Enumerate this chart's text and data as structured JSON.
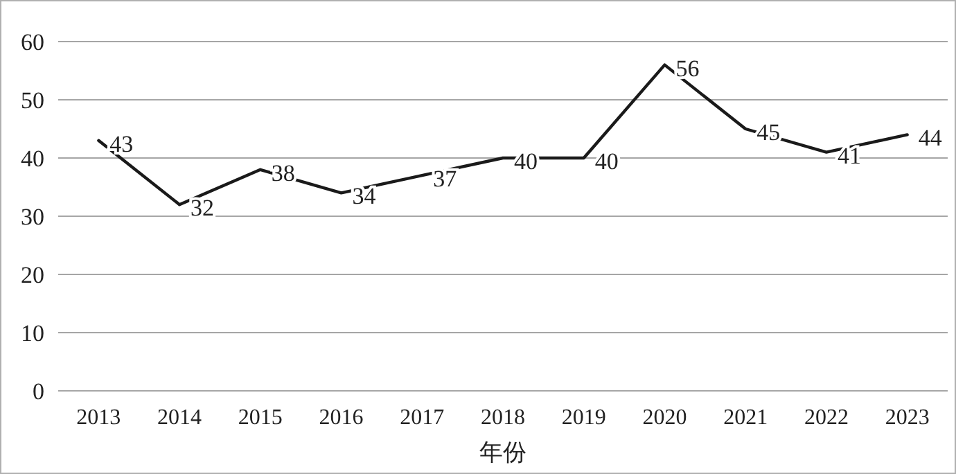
{
  "chart_data": {
    "type": "line",
    "xlabel": "年份",
    "categories": [
      "2013",
      "2014",
      "2015",
      "2016",
      "2017",
      "2018",
      "2019",
      "2020",
      "2021",
      "2022",
      "2023"
    ],
    "series": [
      {
        "color": "#1a1a1a",
        "values": [
          43,
          32,
          38,
          34,
          37,
          40,
          40,
          56,
          45,
          41,
          44
        ]
      }
    ],
    "ylim": [
      0,
      60
    ],
    "yticks": [
      0,
      10,
      20,
      30,
      40,
      50,
      60
    ],
    "grid": "y",
    "data_labels": true,
    "marker": "none",
    "line_style": "solid"
  }
}
